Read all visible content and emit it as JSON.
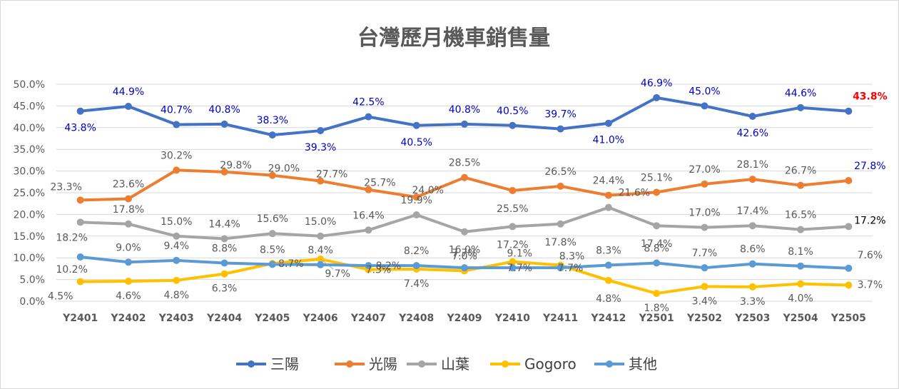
{
  "chart_data": {
    "type": "line",
    "title": "台灣歷月機車銷售量",
    "categories": [
      "Y2401",
      "Y2402",
      "Y2403",
      "Y2404",
      "Y2405",
      "Y2406",
      "Y2407",
      "Y2408",
      "Y2409",
      "Y2410",
      "Y2411",
      "Y2412",
      "Y2501",
      "Y2502",
      "Y2503",
      "Y2504",
      "Y2505"
    ],
    "y_ticks": [
      "0.0%",
      "5.0%",
      "10.0%",
      "15.0%",
      "20.0%",
      "25.0%",
      "30.0%",
      "35.0%",
      "40.0%",
      "45.0%",
      "50.0%"
    ],
    "ylim": [
      0,
      50
    ],
    "grid": true,
    "legend_position": "bottom",
    "series": [
      {
        "name": "三陽",
        "color": "#4472C4",
        "label_color": "#0000CC",
        "values": [
          43.8,
          44.9,
          40.7,
          40.8,
          38.3,
          39.3,
          42.5,
          40.5,
          40.8,
          40.5,
          39.7,
          41.0,
          46.9,
          45.0,
          42.6,
          44.6,
          43.8
        ],
        "labels": [
          "43.8%",
          "44.9%",
          "40.7%",
          "40.8%",
          "38.3%",
          "39.3%",
          "42.5%",
          "40.5%",
          "40.8%",
          "40.5%",
          "39.7%",
          "41.0%",
          "46.9%",
          "45.0%",
          "42.6%",
          "44.6%",
          "43.8%"
        ]
      },
      {
        "name": "光陽",
        "color": "#ED7D31",
        "label_color": "#595959",
        "values": [
          23.3,
          23.6,
          30.2,
          29.8,
          29.0,
          27.7,
          25.7,
          24.0,
          28.5,
          25.5,
          26.5,
          24.4,
          25.1,
          27.0,
          28.1,
          26.7,
          27.8
        ],
        "labels": [
          "23.3%",
          "23.6%",
          "30.2%",
          "29.8%",
          "29.0%",
          "27.7%",
          "25.7%",
          "24.0%",
          "28.5%",
          "25.5%",
          "26.5%",
          "24.4%",
          "25.1%",
          "27.0%",
          "28.1%",
          "26.7%",
          "27.8%"
        ]
      },
      {
        "name": "山葉",
        "color": "#A5A5A5",
        "label_color": "#595959",
        "values": [
          18.2,
          17.8,
          15.0,
          14.4,
          15.6,
          15.0,
          16.4,
          19.9,
          16.0,
          17.2,
          17.8,
          21.6,
          17.4,
          17.0,
          17.4,
          16.5,
          17.2
        ],
        "labels": [
          "18.2%",
          "17.8%",
          "15.0%",
          "14.4%",
          "15.6%",
          "15.0%",
          "16.4%",
          "19.9%",
          "16.0%",
          "17.2%",
          "17.8%",
          "21.6%",
          "17.4%",
          "17.0%",
          "17.4%",
          "16.5%",
          "17.2%"
        ]
      },
      {
        "name": "Gogoro",
        "color": "#FFC000",
        "label_color": "#595959",
        "values": [
          4.5,
          4.6,
          4.8,
          6.3,
          8.7,
          9.7,
          7.3,
          7.4,
          7.0,
          9.1,
          8.3,
          4.8,
          1.8,
          3.4,
          3.3,
          4.0,
          3.7
        ],
        "labels": [
          "4.5%",
          "4.6%",
          "4.8%",
          "6.3%",
          "8.7%",
          "9.7%",
          "7.3%",
          "7.4%",
          "7.0%",
          "9.1%",
          "8.3%",
          "4.8%",
          "1.8%",
          "3.4%",
          "3.3%",
          "4.0%",
          "3.7%"
        ]
      },
      {
        "name": "其他",
        "color": "#5B9BD5",
        "label_color": "#595959",
        "values": [
          10.2,
          9.0,
          9.4,
          8.8,
          8.5,
          8.4,
          8.2,
          8.2,
          7.7,
          7.7,
          7.7,
          8.3,
          8.8,
          7.7,
          8.6,
          8.1,
          7.6
        ],
        "labels": [
          "10.2%",
          "9.0%",
          "9.4%",
          "8.8%",
          "8.5%",
          "8.4%",
          "8.2%",
          "8.2%",
          "7.7%",
          "7.7%",
          "7.7%",
          "8.3%",
          "8.8%",
          "7.7%",
          "8.6%",
          "8.1%",
          "7.6%"
        ]
      }
    ]
  }
}
